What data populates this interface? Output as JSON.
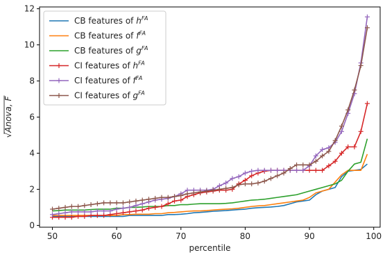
{
  "chart_data": {
    "type": "line",
    "xlabel": "percentile",
    "ylabel_parts": {
      "radical": "√",
      "base": "Anova, F"
    },
    "xlim": [
      48,
      101
    ],
    "ylim": [
      -0.1,
      12.1
    ],
    "x_ticks": [
      50,
      60,
      70,
      80,
      90,
      100
    ],
    "y_ticks": [
      0,
      2,
      4,
      6,
      8,
      10,
      12
    ],
    "grid": false,
    "legend_position": "upper-left",
    "x": [
      50,
      51,
      52,
      53,
      54,
      55,
      56,
      57,
      58,
      59,
      60,
      61,
      62,
      63,
      64,
      65,
      66,
      67,
      68,
      69,
      70,
      71,
      72,
      73,
      74,
      75,
      76,
      77,
      78,
      79,
      80,
      81,
      82,
      83,
      84,
      85,
      86,
      87,
      88,
      89,
      90,
      91,
      92,
      93,
      94,
      95,
      96,
      97,
      98,
      99
    ],
    "series": [
      {
        "name_parts": [
          "CB features of ",
          "h",
          "FA"
        ],
        "color": "#1f77b4",
        "marker": "none",
        "values": [
          0.5,
          0.5,
          0.5,
          0.5,
          0.5,
          0.5,
          0.5,
          0.5,
          0.5,
          0.5,
          0.5,
          0.5,
          0.55,
          0.55,
          0.55,
          0.55,
          0.55,
          0.55,
          0.6,
          0.6,
          0.62,
          0.65,
          0.7,
          0.72,
          0.75,
          0.78,
          0.8,
          0.82,
          0.85,
          0.88,
          0.9,
          0.95,
          0.98,
          1.0,
          1.02,
          1.05,
          1.1,
          1.2,
          1.3,
          1.35,
          1.4,
          1.7,
          1.9,
          2.0,
          2.1,
          2.7,
          3.0,
          3.05,
          3.1,
          3.4
        ]
      },
      {
        "name_parts": [
          "CB features of ",
          "f",
          "FA"
        ],
        "color": "#ff7f0e",
        "marker": "none",
        "values": [
          0.55,
          0.55,
          0.55,
          0.55,
          0.55,
          0.55,
          0.55,
          0.55,
          0.55,
          0.55,
          0.55,
          0.6,
          0.6,
          0.62,
          0.62,
          0.62,
          0.65,
          0.65,
          0.7,
          0.72,
          0.75,
          0.78,
          0.8,
          0.8,
          0.82,
          0.85,
          0.88,
          0.9,
          0.92,
          0.95,
          1.0,
          1.05,
          1.08,
          1.1,
          1.15,
          1.2,
          1.25,
          1.3,
          1.35,
          1.4,
          1.55,
          1.8,
          1.9,
          2.0,
          2.4,
          2.8,
          3.05,
          3.05,
          3.05,
          3.95
        ]
      },
      {
        "name_parts": [
          "CB features of ",
          "g",
          "FA"
        ],
        "color": "#2ca02c",
        "marker": "none",
        "values": [
          0.8,
          0.82,
          0.85,
          0.85,
          0.85,
          0.85,
          0.88,
          0.9,
          0.9,
          0.9,
          0.95,
          0.95,
          1.0,
          1.0,
          1.02,
          1.05,
          1.05,
          1.05,
          1.1,
          1.1,
          1.15,
          1.15,
          1.18,
          1.2,
          1.2,
          1.2,
          1.2,
          1.22,
          1.25,
          1.3,
          1.35,
          1.4,
          1.42,
          1.45,
          1.5,
          1.55,
          1.6,
          1.65,
          1.7,
          1.8,
          1.9,
          2.0,
          2.1,
          2.2,
          2.3,
          2.5,
          3.0,
          3.4,
          3.5,
          4.8
        ]
      },
      {
        "name_parts": [
          "CI features of ",
          "h",
          "FA"
        ],
        "color": "#d62728",
        "marker": "plus",
        "values": [
          0.45,
          0.45,
          0.45,
          0.45,
          0.5,
          0.5,
          0.55,
          0.55,
          0.55,
          0.6,
          0.65,
          0.7,
          0.75,
          0.8,
          0.85,
          0.95,
          1.0,
          1.05,
          1.2,
          1.35,
          1.4,
          1.6,
          1.7,
          1.8,
          1.85,
          1.9,
          1.95,
          1.95,
          2.0,
          2.3,
          2.5,
          2.75,
          2.9,
          3.0,
          3.05,
          3.05,
          3.05,
          3.05,
          3.05,
          3.05,
          3.05,
          3.05,
          3.05,
          3.3,
          3.55,
          4.0,
          4.35,
          4.35,
          5.2,
          6.75
        ]
      },
      {
        "name_parts": [
          "CI features of ",
          "f",
          "FA"
        ],
        "color": "#9467bd",
        "marker": "plus",
        "values": [
          0.6,
          0.65,
          0.7,
          0.75,
          0.75,
          0.75,
          0.75,
          0.8,
          0.8,
          0.8,
          0.9,
          0.95,
          1.0,
          1.1,
          1.2,
          1.3,
          1.4,
          1.45,
          1.5,
          1.6,
          1.75,
          1.95,
          1.95,
          1.95,
          1.95,
          2.0,
          2.2,
          2.35,
          2.6,
          2.7,
          2.9,
          3.0,
          3.05,
          3.05,
          3.05,
          3.05,
          3.05,
          3.05,
          3.05,
          3.05,
          3.3,
          3.85,
          4.2,
          4.3,
          4.6,
          5.2,
          6.2,
          7.3,
          9.0,
          11.55
        ]
      },
      {
        "name_parts": [
          "CI features of ",
          "g",
          "FA"
        ],
        "color": "#8c564b",
        "marker": "plus",
        "values": [
          0.9,
          0.95,
          1.0,
          1.05,
          1.05,
          1.1,
          1.15,
          1.2,
          1.25,
          1.25,
          1.25,
          1.25,
          1.3,
          1.35,
          1.4,
          1.45,
          1.5,
          1.55,
          1.55,
          1.6,
          1.65,
          1.75,
          1.8,
          1.85,
          1.9,
          1.95,
          2.0,
          2.05,
          2.1,
          2.25,
          2.3,
          2.3,
          2.35,
          2.45,
          2.6,
          2.75,
          2.9,
          3.15,
          3.35,
          3.35,
          3.35,
          3.55,
          3.85,
          4.1,
          4.7,
          5.5,
          6.4,
          7.5,
          8.85,
          10.95
        ]
      }
    ]
  }
}
